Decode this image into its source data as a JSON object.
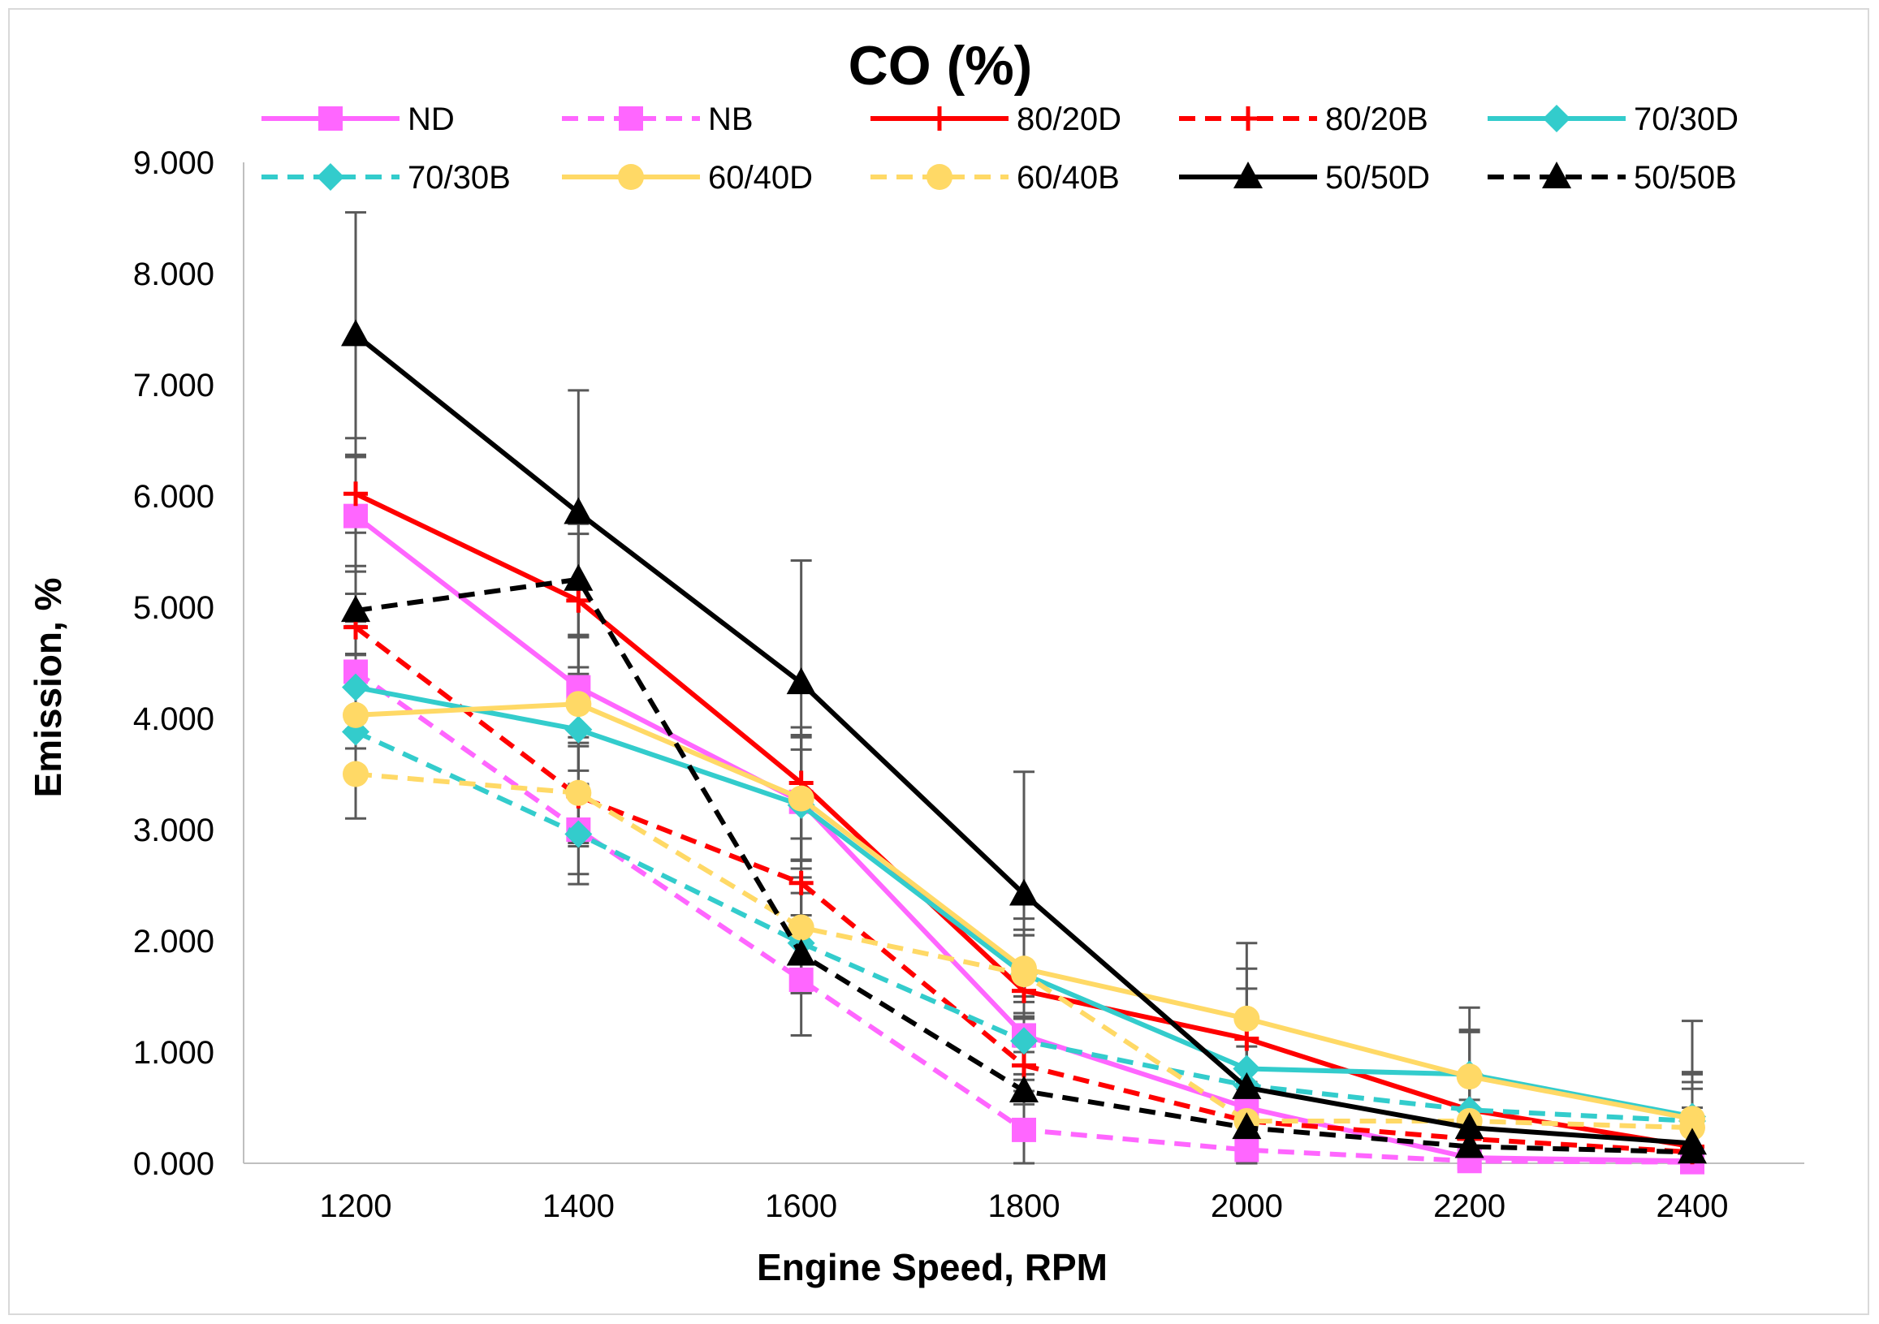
{
  "chart_data": {
    "type": "line",
    "title": "CO (%)",
    "xlabel": "Engine Speed, RPM",
    "ylabel": "Emission, %",
    "categories": [
      "1200",
      "1400",
      "1600",
      "1800",
      "2000",
      "2200",
      "2400"
    ],
    "x": [
      1200,
      1400,
      1600,
      1800,
      2000,
      2200,
      2400
    ],
    "ylim": [
      0,
      9
    ],
    "yticks": [
      0,
      1,
      2,
      3,
      4,
      5,
      6,
      7,
      8,
      9
    ],
    "ytick_labels": [
      "0.000",
      "1.000",
      "2.000",
      "3.000",
      "4.000",
      "5.000",
      "6.000",
      "7.000",
      "8.000",
      "9.000"
    ],
    "grid": false,
    "legend_position": "top",
    "error_bars": true,
    "series": [
      {
        "name": "ND",
        "color": "#FF66FF",
        "dash": "solid",
        "marker": "square",
        "values": [
          5.82,
          4.28,
          3.25,
          1.15,
          0.5,
          0.05,
          0.02
        ],
        "errors": [
          0.7,
          0.45,
          0.6,
          0.35,
          0.35,
          0.35,
          0.35
        ]
      },
      {
        "name": "NB",
        "color": "#FF66FF",
        "dash": "dashed",
        "marker": "square",
        "values": [
          4.42,
          3.0,
          1.65,
          0.3,
          0.12,
          0.02,
          0.01
        ],
        "errors": [
          0.45,
          0.4,
          0.5,
          0.35,
          0.35,
          0.35,
          0.35
        ]
      },
      {
        "name": "80/20D",
        "color": "#FF0000",
        "dash": "solid",
        "marker": "plus",
        "values": [
          6.02,
          5.06,
          3.42,
          1.55,
          1.12,
          0.48,
          0.15
        ],
        "errors": [
          0.35,
          0.6,
          0.5,
          0.5,
          0.45,
          0.35,
          0.35
        ]
      },
      {
        "name": "80/20B",
        "color": "#FF0000",
        "dash": "dashed",
        "marker": "plus",
        "values": [
          4.82,
          3.3,
          2.52,
          0.88,
          0.38,
          0.22,
          0.1
        ],
        "errors": [
          0.5,
          0.45,
          0.4,
          0.35,
          0.35,
          0.35,
          0.35
        ]
      },
      {
        "name": "70/30D",
        "color": "#33CCCC",
        "dash": "solid",
        "marker": "diamond",
        "values": [
          4.28,
          3.9,
          3.22,
          1.7,
          0.85,
          0.8,
          0.42
        ],
        "errors": [
          0.55,
          0.5,
          0.5,
          0.4,
          0.4,
          0.4,
          0.4
        ]
      },
      {
        "name": "70/30B",
        "color": "#33CCCC",
        "dash": "dashed",
        "marker": "diamond",
        "values": [
          3.88,
          2.96,
          1.98,
          1.1,
          0.7,
          0.48,
          0.38
        ],
        "errors": [
          0.4,
          0.45,
          0.45,
          0.35,
          0.35,
          0.35,
          0.35
        ]
      },
      {
        "name": "60/40D",
        "color": "#FFD966",
        "dash": "solid",
        "marker": "circle",
        "values": [
          4.03,
          4.13,
          3.28,
          1.75,
          1.3,
          0.78,
          0.4
        ],
        "errors": [
          0.55,
          0.6,
          0.55,
          0.45,
          0.45,
          0.4,
          0.4
        ]
      },
      {
        "name": "60/40B",
        "color": "#FFD966",
        "dash": "dashed",
        "marker": "circle",
        "values": [
          3.5,
          3.33,
          2.12,
          1.7,
          0.38,
          0.38,
          0.32
        ],
        "errors": [
          0.4,
          0.45,
          0.45,
          0.35,
          0.35,
          0.35,
          0.35
        ]
      },
      {
        "name": "50/50D",
        "color": "#000000",
        "dash": "solid",
        "marker": "triangle",
        "values": [
          7.45,
          5.85,
          4.32,
          2.42,
          0.68,
          0.32,
          0.18
        ],
        "errors": [
          1.1,
          1.1,
          1.1,
          1.1,
          1.3,
          1.08,
          1.1
        ]
      },
      {
        "name": "50/50B",
        "color": "#000000",
        "dash": "dashed",
        "marker": "triangle",
        "values": [
          4.97,
          5.25,
          1.88,
          0.65,
          0.32,
          0.15,
          0.1
        ],
        "errors": [
          0.4,
          0.5,
          0.35,
          0.35,
          0.35,
          0.35,
          0.35
        ]
      }
    ]
  }
}
